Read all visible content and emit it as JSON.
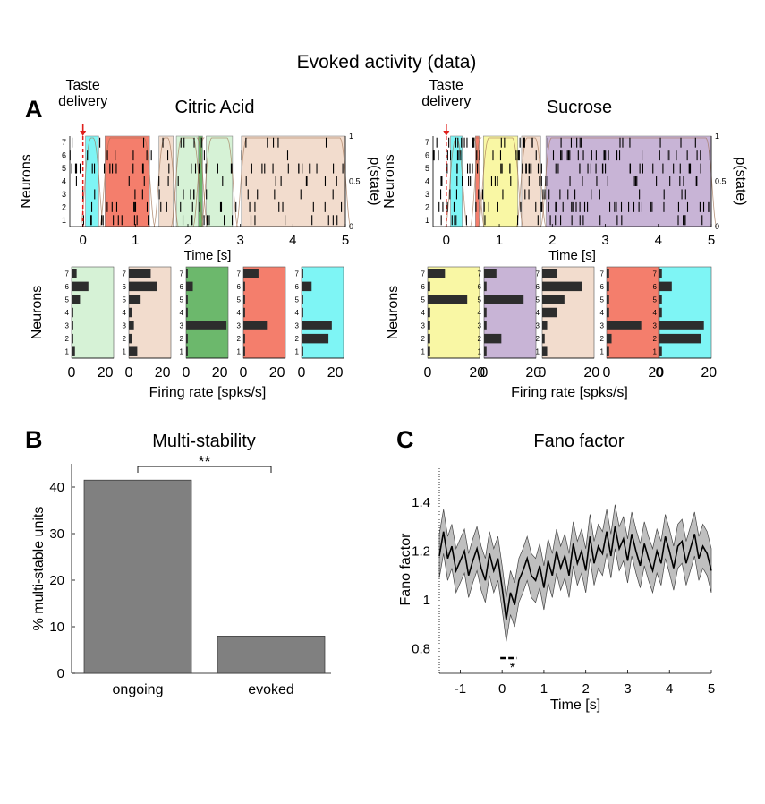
{
  "figure_title": "Evoked activity (data)",
  "panel_letters": {
    "a": "A",
    "b": "B",
    "c": "C"
  },
  "colors": {
    "cyan": "#7ef5f5",
    "red": "#f47e6c",
    "peach": "#f2dccd",
    "lightgreen": "#d6f2d6",
    "green": "#6cb86c",
    "yellow": "#f9f7a4",
    "purple": "#c8b4d6",
    "bar_gray": "#808080",
    "band_gray": "#bfbfbf",
    "stim_red": "#e0201c"
  },
  "chart_data": [
    {
      "id": "raster_citric",
      "type": "raster",
      "title": "Citric Acid",
      "annotation": "Taste\ndelivery",
      "xlabel": "Time [s]",
      "ylabel": "Neurons",
      "right_label": "p(state)",
      "xlim": [
        -0.25,
        5
      ],
      "xticks": [
        "0",
        "1",
        "2",
        "3",
        "4",
        "5"
      ],
      "neuron_ticks": [
        "1",
        "2",
        "3",
        "4",
        "5",
        "6",
        "7"
      ],
      "prob_ticks": [
        "0",
        "0.5",
        "1"
      ],
      "states": [
        {
          "start": 0.05,
          "end": 0.3,
          "color": "cyan"
        },
        {
          "start": 0.42,
          "end": 1.27,
          "color": "red"
        },
        {
          "start": 1.45,
          "end": 1.72,
          "color": "peach"
        },
        {
          "start": 1.78,
          "end": 2.2,
          "color": "lightgreen"
        },
        {
          "start": 2.2,
          "end": 2.28,
          "color": "green"
        },
        {
          "start": 2.35,
          "end": 2.85,
          "color": "lightgreen"
        },
        {
          "start": 3.02,
          "end": 5.0,
          "color": "peach"
        }
      ],
      "firing_rate_panels": {
        "xlabel": "Firing rate [spks/s]",
        "ylabel": "Neurons",
        "xlim": [
          0,
          25
        ],
        "xtick_labels": [
          "0",
          "20"
        ],
        "panels": [
          {
            "color": "lightgreen",
            "rates": [
              2,
              1,
              1,
              1,
              5,
              10,
              3
            ]
          },
          {
            "color": "peach",
            "rates": [
              5,
              2,
              3,
              2,
              7,
              17,
              13
            ]
          },
          {
            "color": "green",
            "rates": [
              1,
              1,
              24,
              1,
              1,
              4,
              1
            ]
          },
          {
            "color": "red",
            "rates": [
              1,
              1,
              14,
              1,
              1,
              1,
              9
            ]
          },
          {
            "color": "cyan",
            "rates": [
              1,
              16,
              18,
              1,
              1,
              6,
              1
            ]
          }
        ]
      }
    },
    {
      "id": "raster_sucrose",
      "type": "raster",
      "title": "Sucrose",
      "annotation": "Taste\ndelivery",
      "xlabel": "Time [s]",
      "ylabel": "Neurons",
      "right_label": "p(state)",
      "xlim": [
        -0.25,
        5
      ],
      "xticks": [
        "0",
        "1",
        "2",
        "3",
        "4",
        "5"
      ],
      "neuron_ticks": [
        "1",
        "2",
        "3",
        "4",
        "5",
        "6",
        "7"
      ],
      "prob_ticks": [
        "0",
        "0.5",
        "1"
      ],
      "states": [
        {
          "start": 0.08,
          "end": 0.3,
          "color": "cyan"
        },
        {
          "start": 0.55,
          "end": 0.62,
          "color": "red"
        },
        {
          "start": 0.7,
          "end": 1.35,
          "color": "yellow"
        },
        {
          "start": 1.42,
          "end": 1.78,
          "color": "peach"
        },
        {
          "start": 1.88,
          "end": 5.0,
          "color": "purple"
        }
      ],
      "firing_rate_panels": {
        "xlabel": "Firing rate [spks/s]",
        "ylabel": "Neurons",
        "xlim": [
          0,
          21
        ],
        "xtick_labels": [
          "0",
          "20"
        ],
        "panels": [
          {
            "color": "yellow",
            "rates": [
              1,
              1,
              1,
              1,
              16,
              1,
              7
            ]
          },
          {
            "color": "purple",
            "rates": [
              1,
              7,
              1,
              1,
              16,
              1,
              5
            ]
          },
          {
            "color": "peach",
            "rates": [
              2,
              1,
              2,
              6,
              9,
              16,
              6
            ]
          },
          {
            "color": "red",
            "rates": [
              1,
              2,
              14,
              1,
              1,
              1,
              1
            ]
          },
          {
            "color": "cyan",
            "rates": [
              1,
              17,
              18,
              1,
              1,
              5,
              1
            ]
          }
        ]
      }
    },
    {
      "id": "multistability",
      "type": "bar",
      "title": "Multi-stability",
      "categories": [
        "ongoing",
        "evoked"
      ],
      "values": [
        41.5,
        8
      ],
      "ylabel": "% multi-stable units",
      "ylim": [
        0,
        45
      ],
      "yticks": [
        "0",
        "10",
        "20",
        "30",
        "40"
      ],
      "significance": "**"
    },
    {
      "id": "fano",
      "type": "line",
      "title": "Fano factor",
      "xlabel": "Time [s]",
      "ylabel": "Fano factor",
      "xlim": [
        -1.5,
        5
      ],
      "ylim": [
        0.7,
        1.55
      ],
      "xticks": [
        "-1",
        "0",
        "1",
        "2",
        "3",
        "4",
        "5"
      ],
      "yticks": [
        "0.8",
        "1",
        "1.2",
        "1.4"
      ],
      "significance_star": "*",
      "series": [
        {
          "name": "Fano factor",
          "x": [
            -1.5,
            -1.4,
            -1.3,
            -1.2,
            -1.1,
            -1.0,
            -0.9,
            -0.8,
            -0.7,
            -0.6,
            -0.5,
            -0.4,
            -0.3,
            -0.2,
            -0.1,
            0.0,
            0.1,
            0.2,
            0.3,
            0.4,
            0.5,
            0.6,
            0.7,
            0.8,
            0.9,
            1.0,
            1.1,
            1.2,
            1.3,
            1.4,
            1.5,
            1.6,
            1.7,
            1.8,
            1.9,
            2.0,
            2.1,
            2.2,
            2.3,
            2.4,
            2.5,
            2.6,
            2.7,
            2.8,
            2.9,
            3.0,
            3.1,
            3.2,
            3.3,
            3.4,
            3.5,
            3.6,
            3.7,
            3.8,
            3.9,
            4.0,
            4.1,
            4.2,
            4.3,
            4.4,
            4.5,
            4.6,
            4.7,
            4.8,
            4.9,
            5.0
          ],
          "y": [
            1.18,
            1.28,
            1.17,
            1.22,
            1.12,
            1.16,
            1.2,
            1.1,
            1.16,
            1.21,
            1.13,
            1.08,
            1.19,
            1.12,
            1.17,
            1.05,
            0.92,
            1.03,
            0.98,
            1.08,
            1.12,
            1.17,
            1.1,
            1.08,
            1.14,
            1.05,
            1.16,
            1.1,
            1.2,
            1.13,
            1.18,
            1.1,
            1.23,
            1.15,
            1.2,
            1.12,
            1.26,
            1.15,
            1.22,
            1.19,
            1.28,
            1.18,
            1.3,
            1.21,
            1.25,
            1.16,
            1.27,
            1.2,
            1.14,
            1.23,
            1.17,
            1.12,
            1.2,
            1.15,
            1.26,
            1.2,
            1.13,
            1.22,
            1.24,
            1.15,
            1.21,
            1.27,
            1.17,
            1.22,
            1.19,
            1.12
          ],
          "sem": 0.09
        }
      ]
    }
  ]
}
